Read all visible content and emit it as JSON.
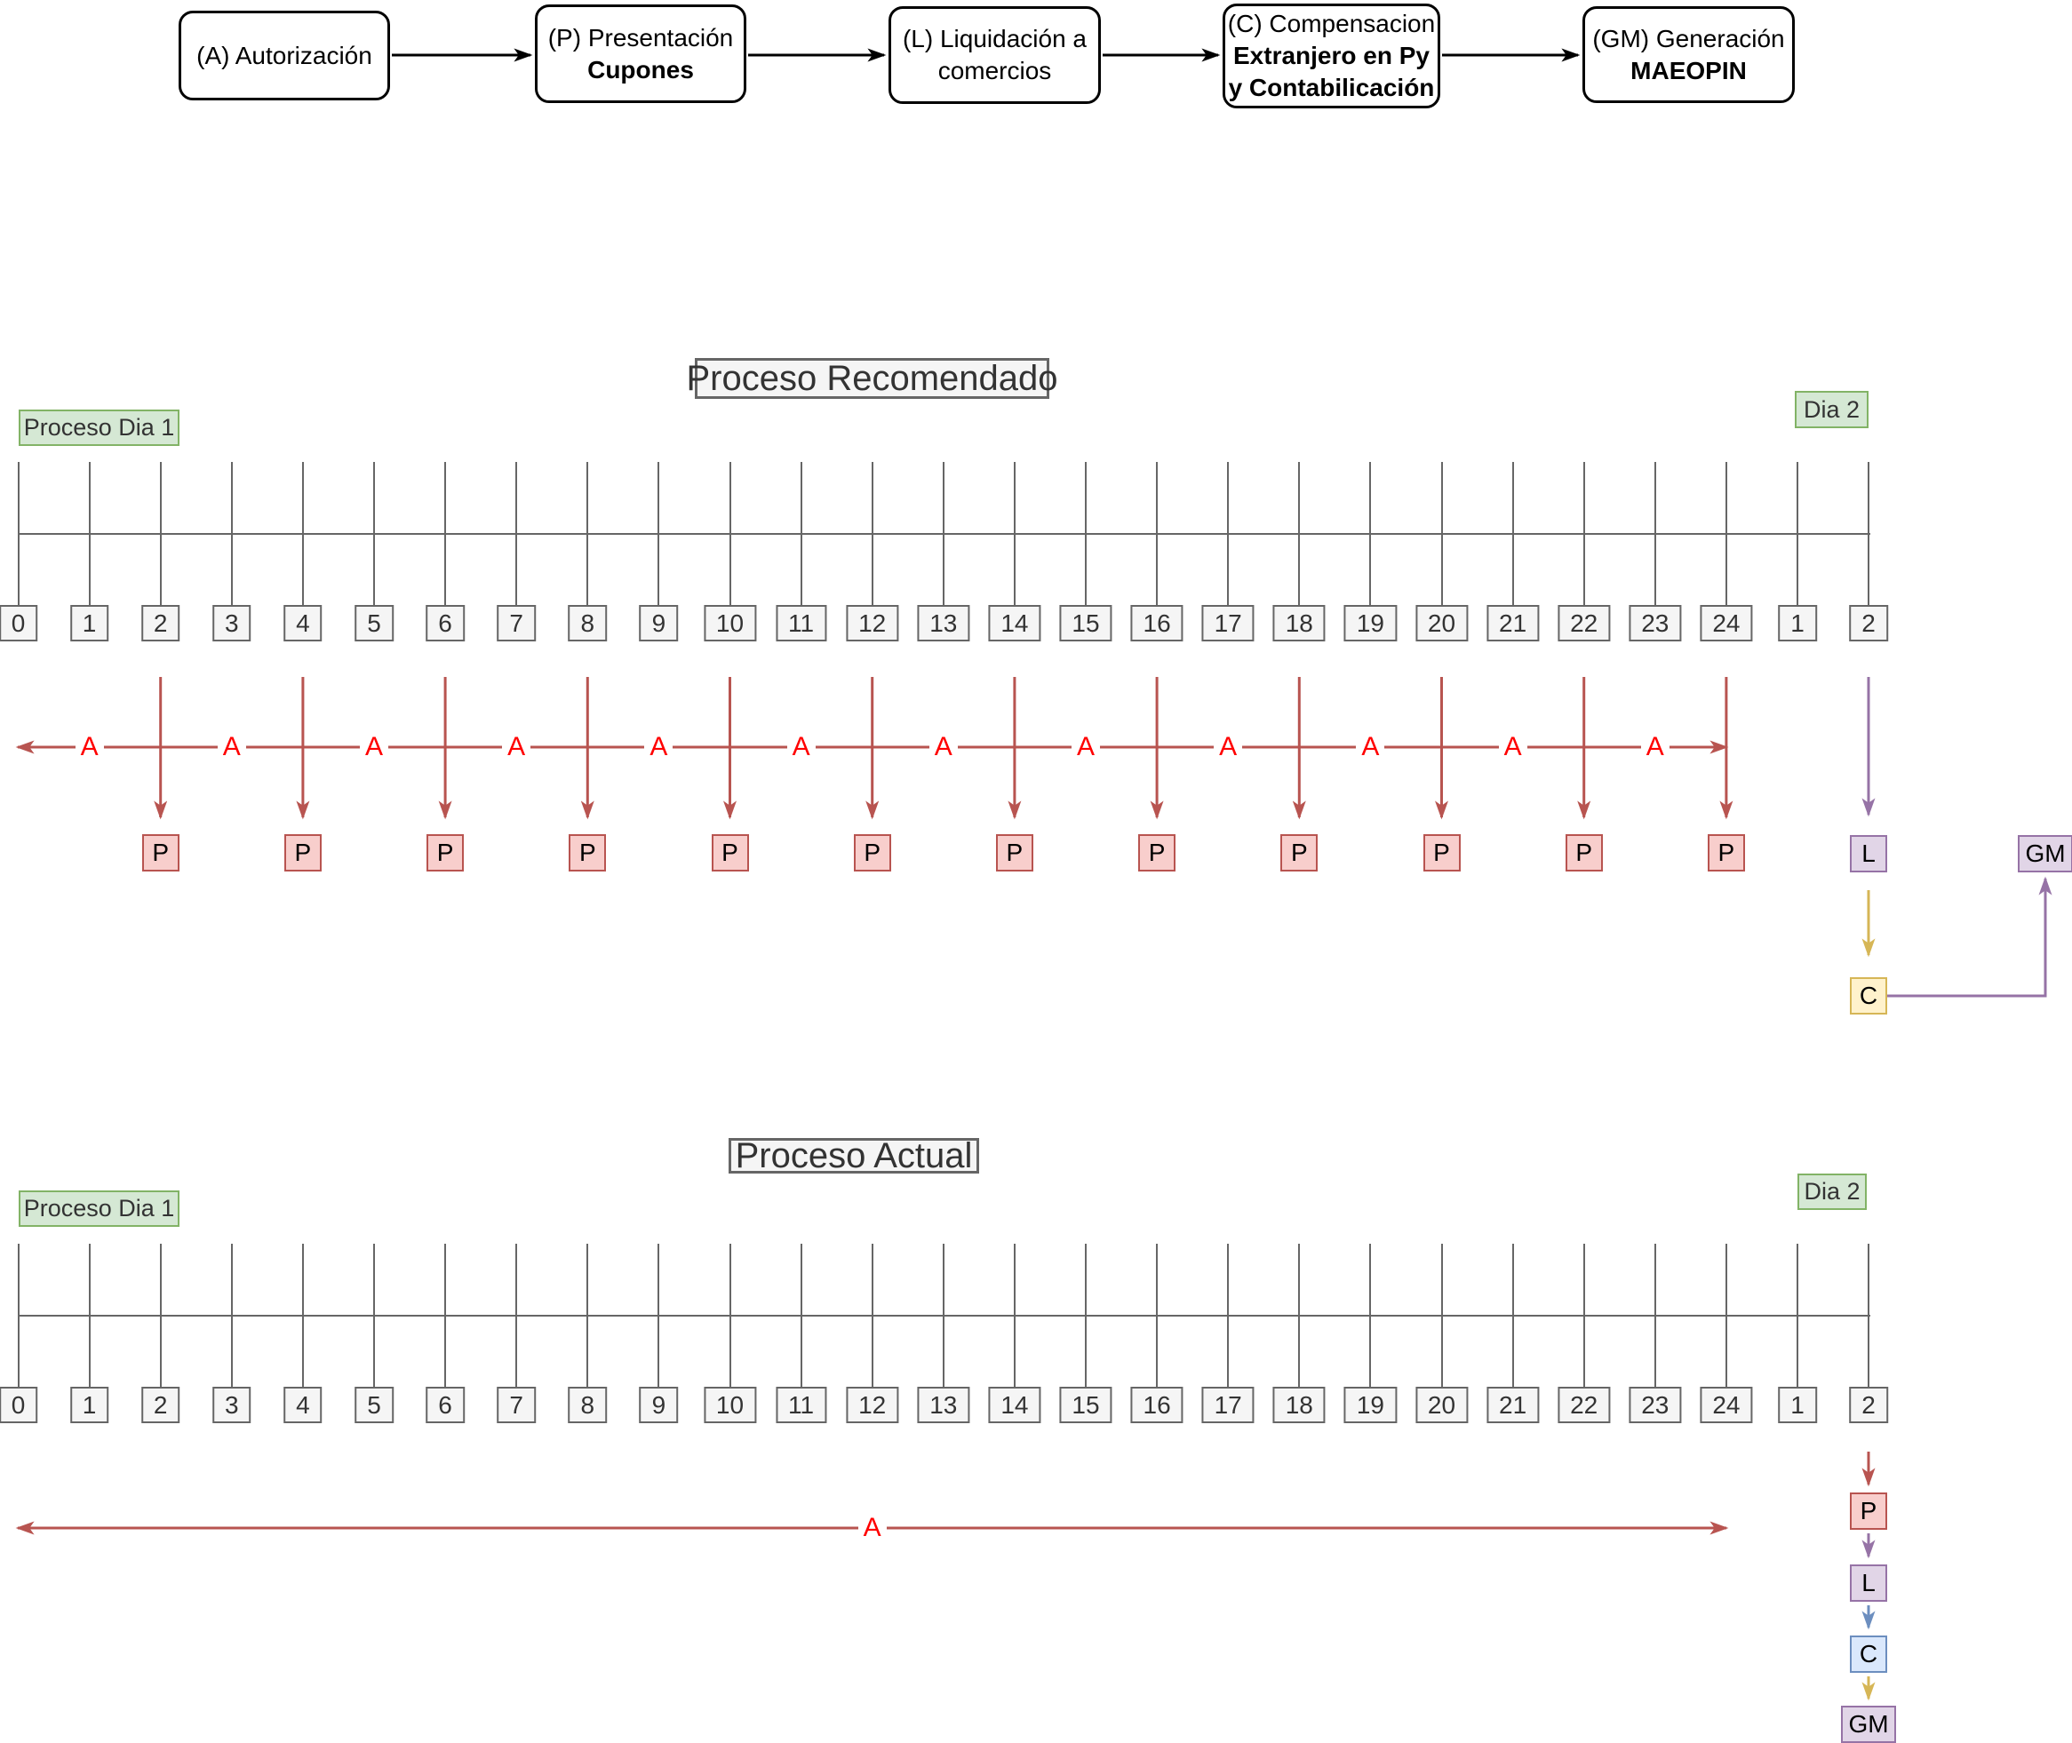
{
  "flowchart": {
    "boxes": [
      {
        "line1": "(A) Autorización",
        "line2": "",
        "line3": ""
      },
      {
        "line1": "(P) Presentación",
        "line2": "Cupones",
        "line3": ""
      },
      {
        "line1": "(L) Liquidación a",
        "line2": "comercios",
        "line3": ""
      },
      {
        "line1": "(C) Compensacion",
        "line2": "Extranjero en Py",
        "line3": "y Contabilicación"
      },
      {
        "line1": "(GM) Generación",
        "line2": "MAEOPIN",
        "line3": ""
      }
    ]
  },
  "recommended": {
    "title": "Proceso Recomendado",
    "day1_label": "Proceso Dia 1",
    "day2_label": "Dia 2",
    "hours": [
      "0",
      "1",
      "2",
      "3",
      "4",
      "5",
      "6",
      "7",
      "8",
      "9",
      "10",
      "11",
      "12",
      "13",
      "14",
      "15",
      "16",
      "17",
      "18",
      "19",
      "20",
      "21",
      "22",
      "23",
      "24",
      "1",
      "2"
    ],
    "auth_label": "A",
    "auth_tick_indices": [
      1,
      3,
      5,
      7,
      9,
      11,
      13,
      15,
      17,
      19,
      21,
      23
    ],
    "presentation_label": "P",
    "presentation_tick_indices": [
      2,
      4,
      6,
      8,
      10,
      12,
      14,
      16,
      18,
      20,
      22,
      24
    ],
    "liquidation_label": "L",
    "compensation_label": "C",
    "generation_label": "GM"
  },
  "actual": {
    "title": "Proceso Actual",
    "day1_label": "Proceso Dia 1",
    "day2_label": "Dia 2",
    "hours": [
      "0",
      "1",
      "2",
      "3",
      "4",
      "5",
      "6",
      "7",
      "8",
      "9",
      "10",
      "11",
      "12",
      "13",
      "14",
      "15",
      "16",
      "17",
      "18",
      "19",
      "20",
      "21",
      "22",
      "23",
      "24",
      "1",
      "2"
    ],
    "auth_label": "A",
    "auth_tick_indices": [
      12
    ],
    "presentation_label": "P",
    "liquidation_label": "L",
    "compensation_label": "C",
    "generation_label": "GM"
  },
  "colors": {
    "auth_red": "#b85450",
    "auth_text_red": "#ff0000",
    "presentation_fill": "#f8cecc",
    "presentation_border": "#b85450",
    "liquidation_fill": "#e1d5e7",
    "liquidation_border": "#9673a6",
    "compensation_fill_recommended": "#fff2cc",
    "compensation_border_recommended": "#d6b656",
    "compensation_fill_actual": "#dae8fc",
    "compensation_border_actual": "#6c8ebf",
    "generation_fill": "#e1d5e7",
    "generation_border": "#9673a6",
    "day_label_fill": "#d5e8d4",
    "day_label_border": "#82b366",
    "yellow_arrow": "#d6b656",
    "purple_arrow": "#9673a6",
    "blue_arrow": "#6c8ebf",
    "ruler_gray": "#666666",
    "flow_black": "#000000"
  }
}
